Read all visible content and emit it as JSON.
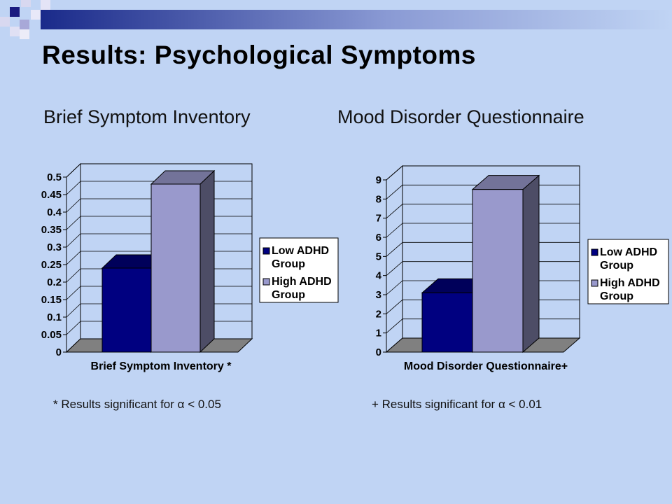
{
  "slide": {
    "title": "Results: Psychological Symptoms",
    "subtitle_left": "Brief Symptom Inventory",
    "subtitle_right": "Mood Disorder Questionnaire",
    "note_left_prefix": "* Results significant for ",
    "note_right_prefix": "+ Results significant for ",
    "alpha_symbol": "α",
    "note_left_suffix": " < 0.05",
    "note_right_suffix": " < 0.01"
  },
  "colors": {
    "background": "#c0d4f4",
    "low": "#000080",
    "high": "#9999cc"
  },
  "chart_data": [
    {
      "type": "bar",
      "xlabel": "Brief Symptom Inventory *",
      "ylim": [
        0,
        0.5
      ],
      "yticks": [
        "0",
        "0.05",
        "0.1",
        "0.15",
        "0.2",
        "0.25",
        "0.3",
        "0.35",
        "0.4",
        "0.45",
        "0.5"
      ],
      "grid": true,
      "legend_position": "right",
      "series": [
        {
          "name": "Low ADHD Group",
          "values": [
            0.24
          ]
        },
        {
          "name": "High ADHD Group",
          "values": [
            0.48
          ]
        }
      ]
    },
    {
      "type": "bar",
      "xlabel": "Mood Disorder Questionnaire+",
      "ylim": [
        0,
        9
      ],
      "yticks": [
        "0",
        "1",
        "2",
        "3",
        "4",
        "5",
        "6",
        "7",
        "8",
        "9"
      ],
      "grid": true,
      "legend_position": "right",
      "series": [
        {
          "name": "Low ADHD Group",
          "values": [
            3.1
          ]
        },
        {
          "name": "High ADHD Group",
          "values": [
            8.5
          ]
        }
      ]
    }
  ]
}
